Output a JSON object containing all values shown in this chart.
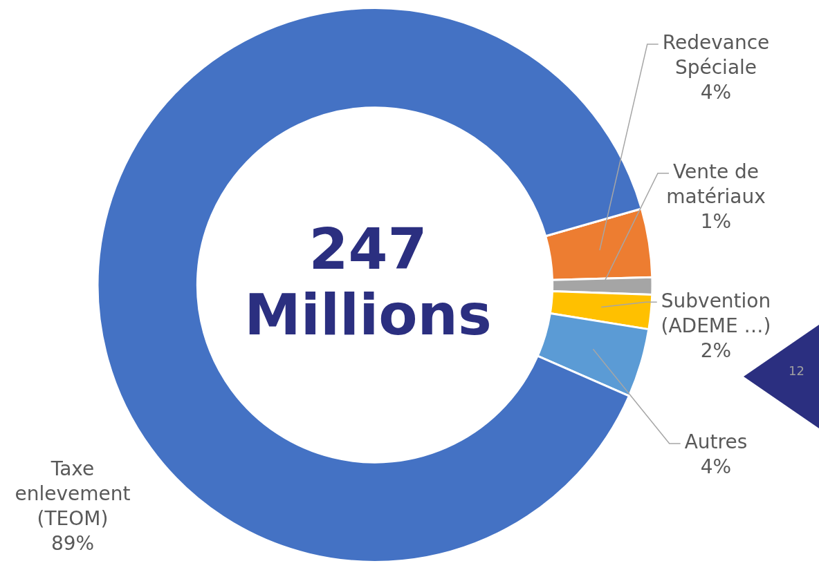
{
  "chart_data": {
    "type": "donut",
    "categories": [
      "Redevance Spéciale",
      "Vente de matériaux",
      "Subvention (ADEME …)",
      "Autres",
      "Taxe enlevement (TEOM)"
    ],
    "values": [
      4,
      1,
      2,
      4,
      89
    ],
    "colors": [
      "#ed7d31",
      "#a5a5a5",
      "#ffc000",
      "#5b9bd5",
      "#4472c4"
    ],
    "value_labels": [
      "4%",
      "1%",
      "2%",
      "4%",
      "89%"
    ],
    "annotations": [
      "247 Millions",
      "12"
    ],
    "legend": false
  }
}
